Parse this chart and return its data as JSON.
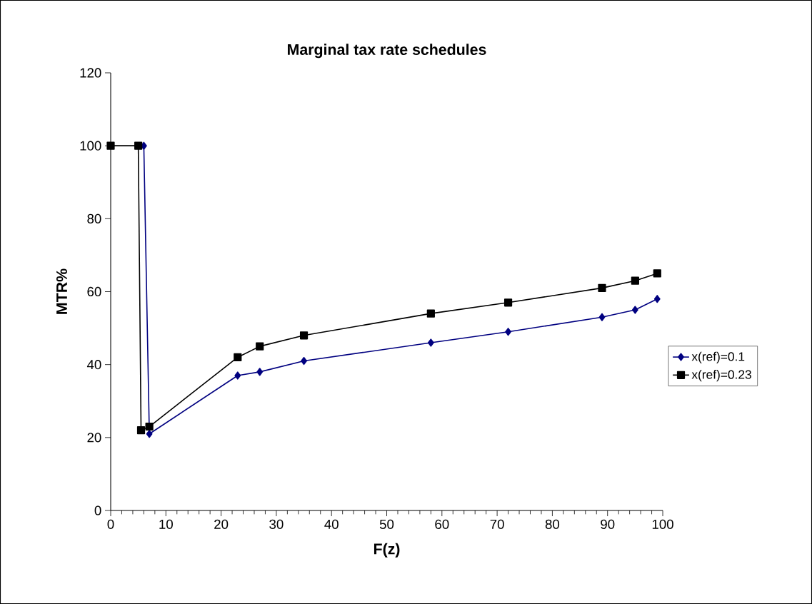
{
  "chart_data": {
    "type": "line",
    "title": "Marginal tax rate schedules",
    "xlabel": "F(z)",
    "ylabel": "MTR%",
    "xlim": [
      0,
      100
    ],
    "xticks": [
      0,
      10,
      20,
      30,
      40,
      50,
      60,
      70,
      80,
      90,
      100
    ],
    "ylim": [
      0,
      120
    ],
    "yticks": [
      0,
      20,
      40,
      60,
      80,
      100,
      120
    ],
    "grid": false,
    "legend": "right",
    "series": [
      {
        "name": "x(ref)=0.1",
        "color": "#000080",
        "marker": "diamond",
        "x": [
          6,
          7,
          23,
          27,
          35,
          58,
          72,
          89,
          95,
          99
        ],
        "values": [
          100,
          21,
          37,
          38,
          41,
          46,
          49,
          53,
          55,
          58
        ]
      },
      {
        "name": "x(ref)=0.23",
        "color": "#000000",
        "marker": "square",
        "x": [
          0,
          5,
          5.5,
          7,
          23,
          27,
          35,
          58,
          72,
          89,
          95,
          99
        ],
        "values": [
          100,
          100,
          22,
          23,
          42,
          45,
          48,
          54,
          57,
          61,
          63,
          65
        ]
      }
    ]
  }
}
